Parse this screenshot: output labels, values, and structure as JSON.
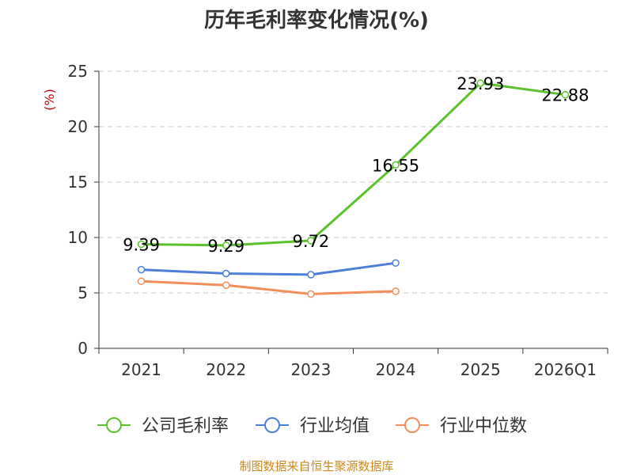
{
  "chart_data": {
    "type": "line",
    "title": "历年毛利率变化情况(%)",
    "ylabel": "(%)",
    "xlabel": "",
    "categories": [
      "2021",
      "2022",
      "2023",
      "2024",
      "2025",
      "2026Q1"
    ],
    "ylim": [
      0,
      25
    ],
    "yticks": [
      0,
      5,
      10,
      15,
      20,
      25
    ],
    "grid": true,
    "legend_position": "bottom",
    "series": [
      {
        "name": "公司毛利率",
        "color": "#5cc22b",
        "values": [
          9.39,
          9.29,
          9.72,
          16.55,
          23.93,
          22.88
        ],
        "labels": [
          "9.39",
          "9.29",
          "9.72",
          "16.55",
          "23.93",
          "22.88"
        ]
      },
      {
        "name": "行业均值",
        "color": "#4e7fd8",
        "values": [
          7.1,
          6.75,
          6.65,
          7.7,
          null,
          null
        ]
      },
      {
        "name": "行业中位数",
        "color": "#f28e5b",
        "values": [
          6.05,
          5.7,
          4.9,
          5.15,
          null,
          null
        ]
      }
    ],
    "source": "制图数据来自恒生聚源数据库"
  }
}
